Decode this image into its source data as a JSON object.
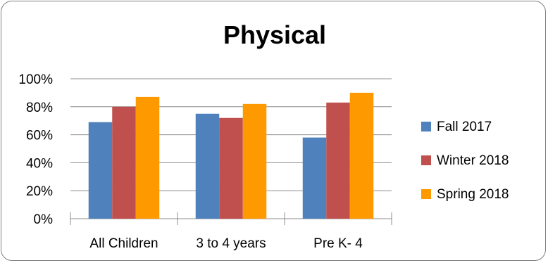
{
  "chart_data": {
    "type": "bar",
    "title": "Physical",
    "categories": [
      "All Children",
      "3 to 4 years",
      "Pre K- 4"
    ],
    "series": [
      {
        "name": "Fall 2017",
        "color": "#4f81bd",
        "values": [
          69,
          75,
          58
        ]
      },
      {
        "name": "Winter 2018",
        "color": "#c0504d",
        "values": [
          80,
          72,
          83
        ]
      },
      {
        "name": "Spring 2018",
        "color": "#ff9900",
        "values": [
          87,
          82,
          90
        ]
      }
    ],
    "y_ticks": [
      "0%",
      "20%",
      "40%",
      "60%",
      "80%",
      "100%"
    ],
    "ylim": [
      0,
      100
    ],
    "grid": true,
    "legend": "right"
  }
}
